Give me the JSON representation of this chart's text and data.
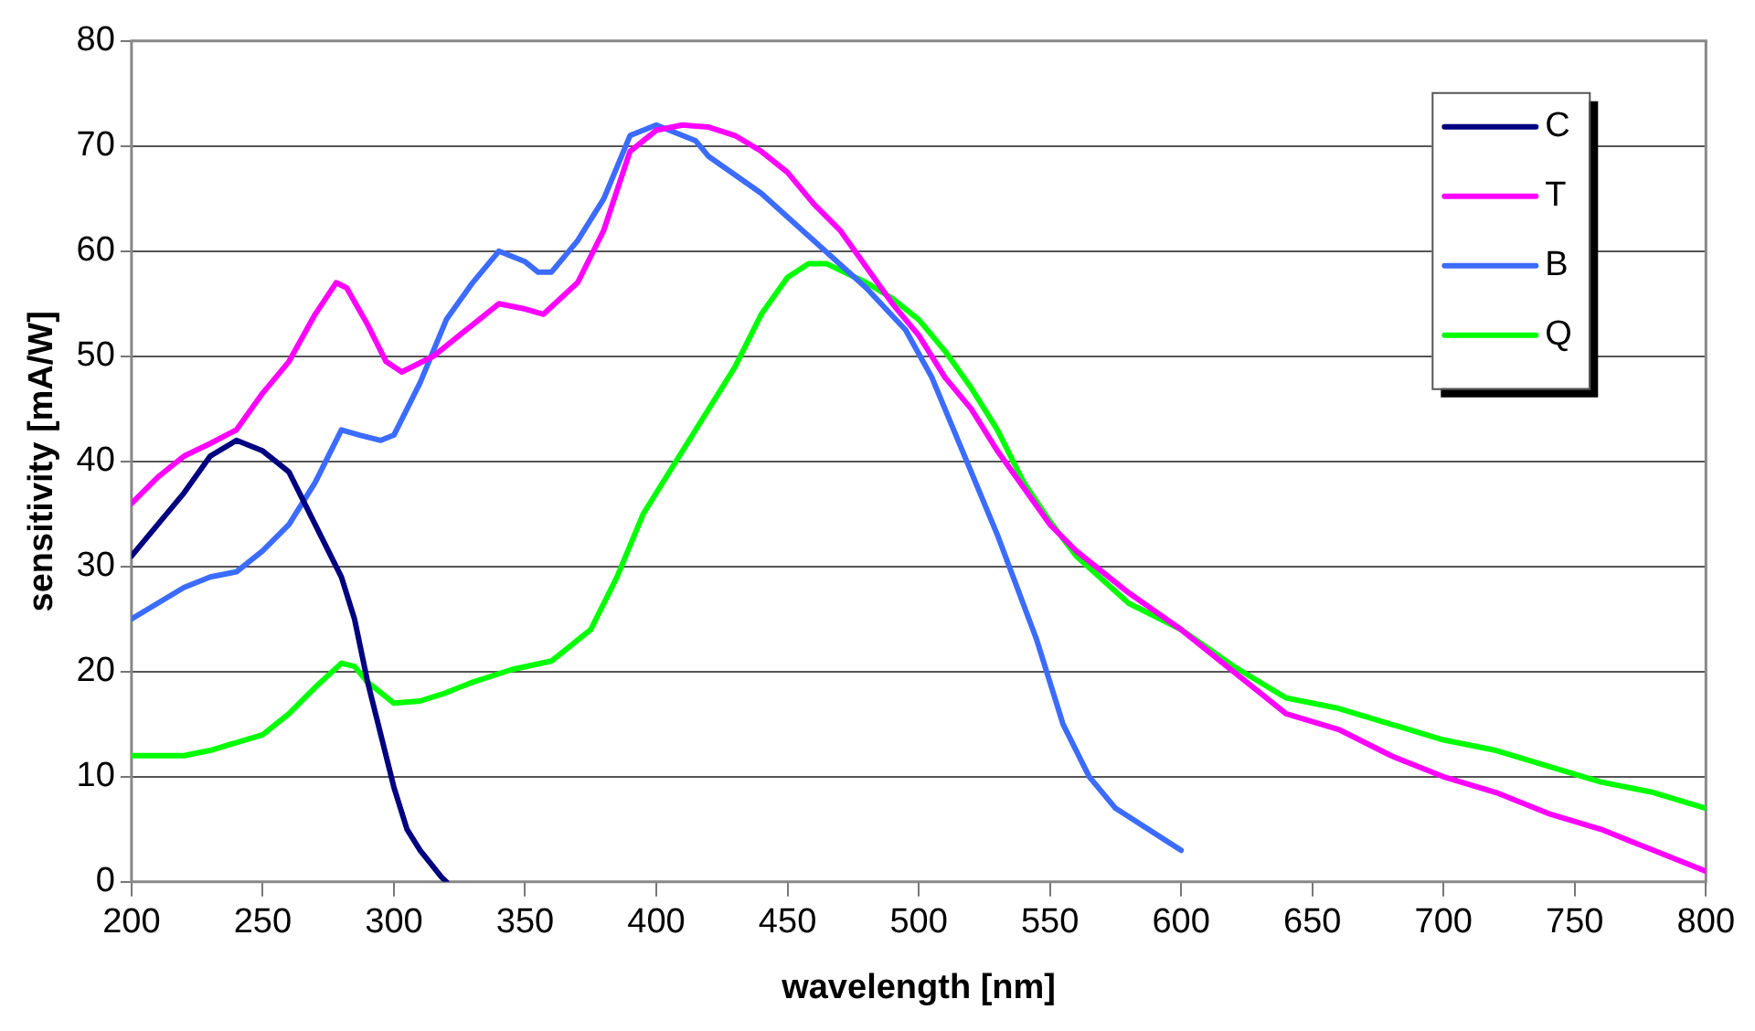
{
  "chart_data": {
    "type": "line",
    "xlabel": "wavelength [nm]",
    "ylabel": "sensitivity [mA/W]",
    "xlim": [
      200,
      800
    ],
    "xticks": [
      200,
      250,
      300,
      350,
      400,
      450,
      500,
      550,
      600,
      650,
      700,
      750,
      800
    ],
    "ylim": [
      0,
      80
    ],
    "yticks": [
      0,
      10,
      20,
      30,
      40,
      50,
      60,
      70,
      80
    ],
    "grid": "y",
    "legend": "top right",
    "marker": "none",
    "line_style": "solid",
    "series": [
      {
        "name": "C",
        "color": "#000080",
        "x": [
          200,
          210,
          220,
          230,
          240,
          250,
          260,
          270,
          280,
          285,
          290,
          295,
          300,
          305,
          310,
          318,
          320
        ],
        "values": [
          31,
          34,
          37,
          40.5,
          42,
          41,
          39,
          34,
          29,
          25,
          19,
          14,
          9,
          5,
          3,
          0.5,
          0
        ]
      },
      {
        "name": "T",
        "color": "#ff00ff",
        "x": [
          200,
          210,
          220,
          230,
          240,
          250,
          260,
          270,
          278,
          282,
          290,
          297,
          303,
          315,
          330,
          340,
          350,
          357,
          370,
          380,
          390,
          400,
          410,
          420,
          430,
          440,
          450,
          460,
          470,
          480,
          490,
          500,
          510,
          520,
          530,
          540,
          550,
          560,
          580,
          600,
          620,
          640,
          660,
          680,
          700,
          720,
          740,
          760,
          780,
          800
        ],
        "values": [
          36,
          38.5,
          40.5,
          41.7,
          43,
          46.5,
          49.5,
          54,
          57,
          56.5,
          53,
          49.5,
          48.5,
          50,
          53,
          55,
          54.5,
          54,
          57,
          62,
          69.5,
          71.5,
          72,
          71.8,
          71,
          69.5,
          67.5,
          64.5,
          62,
          58.5,
          55,
          52,
          48,
          45,
          41,
          37.5,
          34,
          31.5,
          27.5,
          24,
          20,
          16,
          14.5,
          12,
          10,
          8.5,
          6.5,
          5,
          3,
          1
        ]
      },
      {
        "name": "B",
        "color": "#3c6cff",
        "x": [
          200,
          220,
          230,
          240,
          250,
          260,
          270,
          280,
          287,
          295,
          300,
          310,
          320,
          330,
          340,
          350,
          355,
          360,
          370,
          380,
          390,
          400,
          410,
          415,
          420,
          440,
          460,
          480,
          495,
          505,
          515,
          530,
          545,
          555,
          565,
          575,
          600
        ],
        "values": [
          25,
          28,
          29,
          29.5,
          31.5,
          34,
          38,
          43,
          42.5,
          42,
          42.5,
          47.5,
          53.5,
          57,
          60,
          59,
          58,
          58,
          61,
          65,
          71,
          72,
          71,
          70.5,
          69,
          65.5,
          61,
          56.5,
          52.5,
          48,
          42,
          33,
          23,
          15,
          10,
          7,
          3
        ]
      },
      {
        "name": "Q",
        "color": "#00ff00",
        "x": [
          200,
          220,
          230,
          250,
          260,
          270,
          280,
          285,
          290,
          300,
          310,
          320,
          330,
          345,
          360,
          375,
          385,
          395,
          410,
          420,
          430,
          440,
          450,
          458,
          465,
          480,
          490,
          500,
          510,
          520,
          530,
          540,
          550,
          560,
          580,
          600,
          620,
          640,
          660,
          680,
          700,
          720,
          740,
          760,
          780,
          800
        ],
        "values": [
          12,
          12,
          12.5,
          14,
          16,
          18.5,
          20.8,
          20.5,
          19,
          17,
          17.2,
          18,
          19,
          20.2,
          21,
          24,
          29,
          35,
          41,
          45,
          49,
          54,
          57.5,
          58.8,
          58.8,
          57,
          55.5,
          53.5,
          50.5,
          47,
          43,
          38,
          34.3,
          31,
          26.5,
          24,
          20.5,
          17.5,
          16.5,
          15,
          13.5,
          12.5,
          11,
          9.5,
          8.5,
          7
        ]
      }
    ]
  }
}
